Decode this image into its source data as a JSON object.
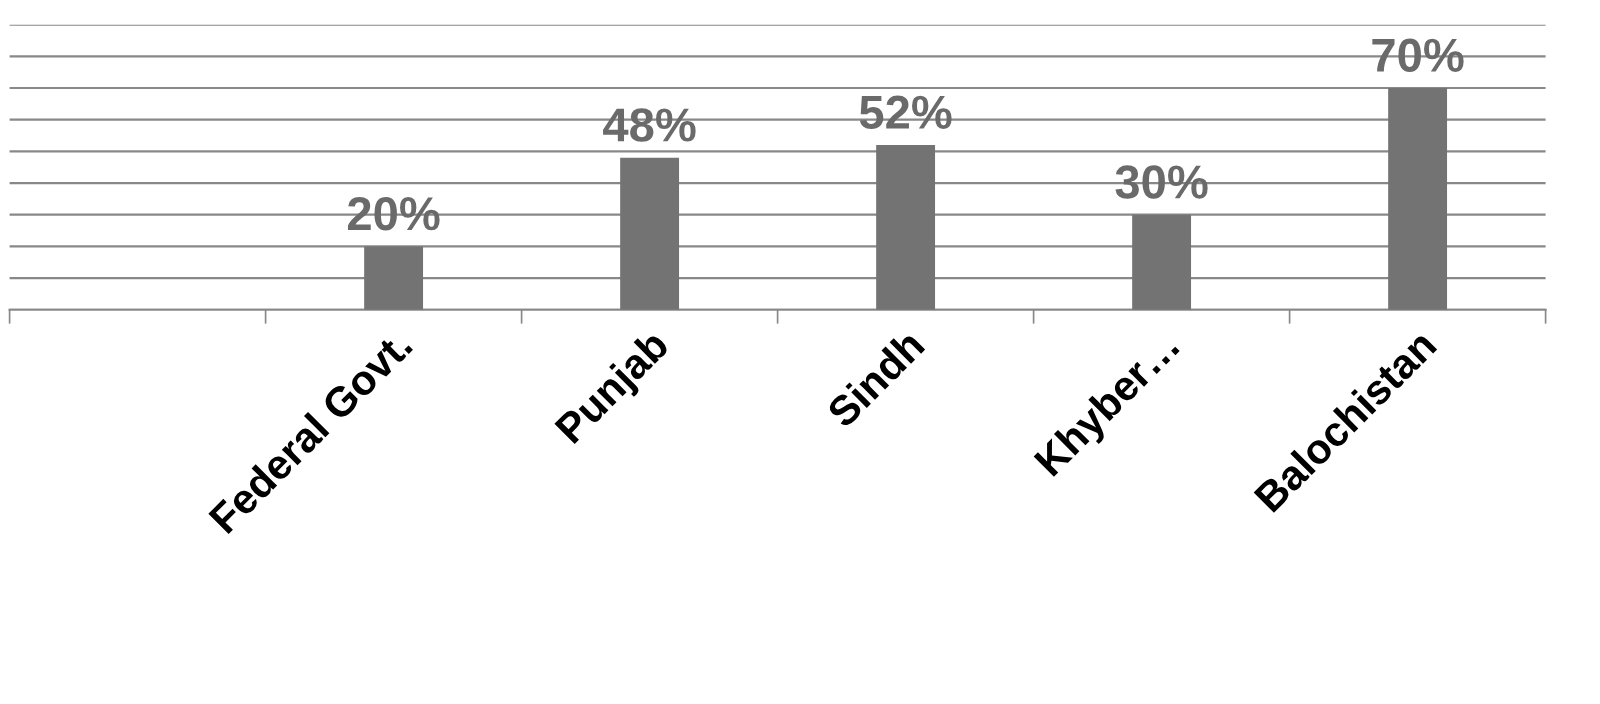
{
  "chart_data": {
    "type": "bar",
    "categories": [
      null,
      "Federal Govt.",
      "Punjab",
      "Sindh",
      "Khyber…",
      "Balochistan"
    ],
    "values": [
      null,
      20,
      48,
      52,
      30,
      70
    ],
    "color": "#737373",
    "value_labels": [
      null,
      "20%",
      "48%",
      "52%",
      "30%",
      "70%"
    ],
    "grid": "y",
    "tick_labels": "x"
  }
}
